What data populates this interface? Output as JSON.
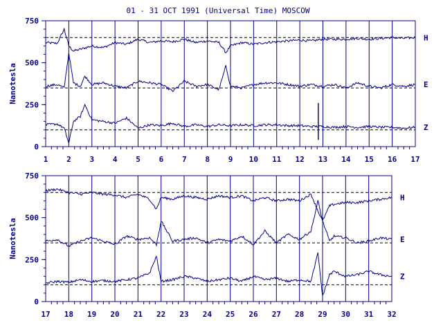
{
  "chart_data": [
    {
      "type": "line",
      "title": "01 - 31 OCT 1991 (Universal Time) MOSCOW",
      "ylabel": "Nanotesla",
      "xlim": [
        1,
        17
      ],
      "ylim": [
        0,
        750
      ],
      "yticks": [
        0,
        250,
        500,
        750
      ],
      "xticks": [
        1,
        2,
        3,
        4,
        5,
        6,
        7,
        8,
        9,
        10,
        11,
        12,
        13,
        14,
        15,
        16,
        17
      ],
      "reference_lines": [
        100,
        350,
        650
      ],
      "grid": "vertical day lines",
      "color": "#00008b",
      "series": [
        {
          "name": "H",
          "x": [
            1,
            1.5,
            1.8,
            2.0,
            2.2,
            2.5,
            3,
            3.5,
            4,
            4.5,
            5,
            5.5,
            6,
            6.5,
            7,
            7.5,
            8,
            8.5,
            8.8,
            9,
            9.5,
            10,
            10.5,
            11,
            11.5,
            12,
            12.5,
            13,
            13.5,
            14,
            14.5,
            15,
            15.5,
            16,
            16.5,
            17
          ],
          "y": [
            620,
            615,
            700,
            600,
            570,
            580,
            600,
            590,
            620,
            610,
            640,
            620,
            630,
            625,
            640,
            620,
            630,
            620,
            560,
            600,
            620,
            610,
            620,
            625,
            630,
            635,
            630,
            640,
            640,
            640,
            645,
            640,
            645,
            650,
            645,
            650
          ]
        },
        {
          "name": "E",
          "x": [
            1,
            1.5,
            1.8,
            2.0,
            2.2,
            2.5,
            2.7,
            3,
            3.5,
            4,
            4.5,
            5,
            5.5,
            6,
            6.5,
            7,
            7.5,
            8,
            8.5,
            8.8,
            9,
            9.5,
            10,
            10.5,
            11,
            11.5,
            12,
            12.5,
            13,
            13.5,
            14,
            14.5,
            15,
            15.5,
            16,
            16.5,
            17
          ],
          "y": [
            360,
            370,
            350,
            560,
            380,
            360,
            420,
            370,
            380,
            360,
            350,
            390,
            380,
            370,
            330,
            390,
            360,
            370,
            340,
            480,
            360,
            350,
            370,
            380,
            380,
            370,
            360,
            370,
            360,
            370,
            350,
            380,
            360,
            350,
            370,
            360,
            370
          ]
        },
        {
          "name": "Z",
          "x": [
            1,
            1.5,
            1.8,
            2.0,
            2.2,
            2.5,
            2.7,
            3,
            3.5,
            4,
            4.5,
            5,
            5.5,
            6,
            6.5,
            7,
            7.5,
            8,
            8.5,
            9,
            9.5,
            10,
            10.5,
            11,
            11.5,
            12,
            12.5,
            13,
            13.5,
            14,
            14.5,
            15,
            15.5,
            16,
            16.5,
            17
          ],
          "y": [
            130,
            135,
            110,
            20,
            150,
            180,
            250,
            160,
            150,
            140,
            170,
            110,
            130,
            125,
            140,
            120,
            130,
            120,
            130,
            125,
            130,
            125,
            130,
            130,
            125,
            125,
            120,
            120,
            115,
            120,
            115,
            120,
            115,
            115,
            110,
            115
          ]
        }
      ],
      "annotations": [
        {
          "x": 12.8,
          "y_from": 40,
          "y_to": 260
        }
      ]
    },
    {
      "type": "line",
      "ylabel": "Nanotesla",
      "xlim": [
        17,
        32
      ],
      "ylim": [
        0,
        750
      ],
      "yticks": [
        0,
        250,
        500,
        750
      ],
      "xticks": [
        17,
        18,
        19,
        20,
        21,
        22,
        23,
        24,
        25,
        26,
        27,
        28,
        29,
        30,
        31,
        32
      ],
      "reference_lines": [
        100,
        350,
        650
      ],
      "grid": "vertical day lines",
      "color": "#00008b",
      "series": [
        {
          "name": "H",
          "x": [
            17,
            17.5,
            18,
            18.5,
            19,
            19.5,
            20,
            20.5,
            21,
            21.5,
            21.8,
            22,
            22.5,
            23,
            23.5,
            24,
            24.5,
            25,
            25.5,
            26,
            26.5,
            27,
            27.5,
            28,
            28.5,
            28.8,
            29,
            29.3,
            29.5,
            30,
            30.5,
            31,
            31.5,
            32
          ],
          "y": [
            660,
            670,
            650,
            640,
            650,
            640,
            635,
            620,
            640,
            610,
            550,
            620,
            610,
            630,
            620,
            610,
            630,
            620,
            630,
            600,
            620,
            600,
            610,
            600,
            640,
            540,
            480,
            570,
            580,
            590,
            590,
            600,
            610,
            620
          ]
        },
        {
          "name": "E",
          "x": [
            17,
            17.5,
            18,
            18.5,
            19,
            19.5,
            20,
            20.5,
            21,
            21.5,
            21.8,
            22,
            22.5,
            23,
            23.5,
            24,
            24.5,
            25,
            25.5,
            26,
            26.5,
            27,
            27.5,
            28,
            28.5,
            28.8,
            29,
            29.3,
            29.5,
            30,
            30.5,
            31,
            31.5,
            32
          ],
          "y": [
            360,
            370,
            330,
            360,
            380,
            360,
            340,
            390,
            370,
            380,
            340,
            480,
            360,
            370,
            380,
            350,
            370,
            360,
            390,
            340,
            420,
            350,
            400,
            370,
            420,
            600,
            480,
            360,
            390,
            380,
            350,
            360,
            380,
            370
          ]
        },
        {
          "name": "Z",
          "x": [
            17,
            17.5,
            18,
            18.5,
            19,
            19.5,
            20,
            20.5,
            21,
            21.5,
            21.8,
            22,
            22.5,
            23,
            23.5,
            24,
            24.5,
            25,
            25.5,
            26,
            26.5,
            27,
            27.5,
            28,
            28.5,
            28.8,
            29,
            29.3,
            29.5,
            30,
            30.5,
            31,
            31.5,
            32
          ],
          "y": [
            110,
            120,
            115,
            130,
            120,
            125,
            120,
            130,
            140,
            170,
            270,
            120,
            130,
            150,
            140,
            120,
            130,
            140,
            120,
            150,
            130,
            140,
            120,
            130,
            120,
            290,
            30,
            160,
            180,
            150,
            160,
            180,
            160,
            150
          ]
        }
      ]
    }
  ]
}
